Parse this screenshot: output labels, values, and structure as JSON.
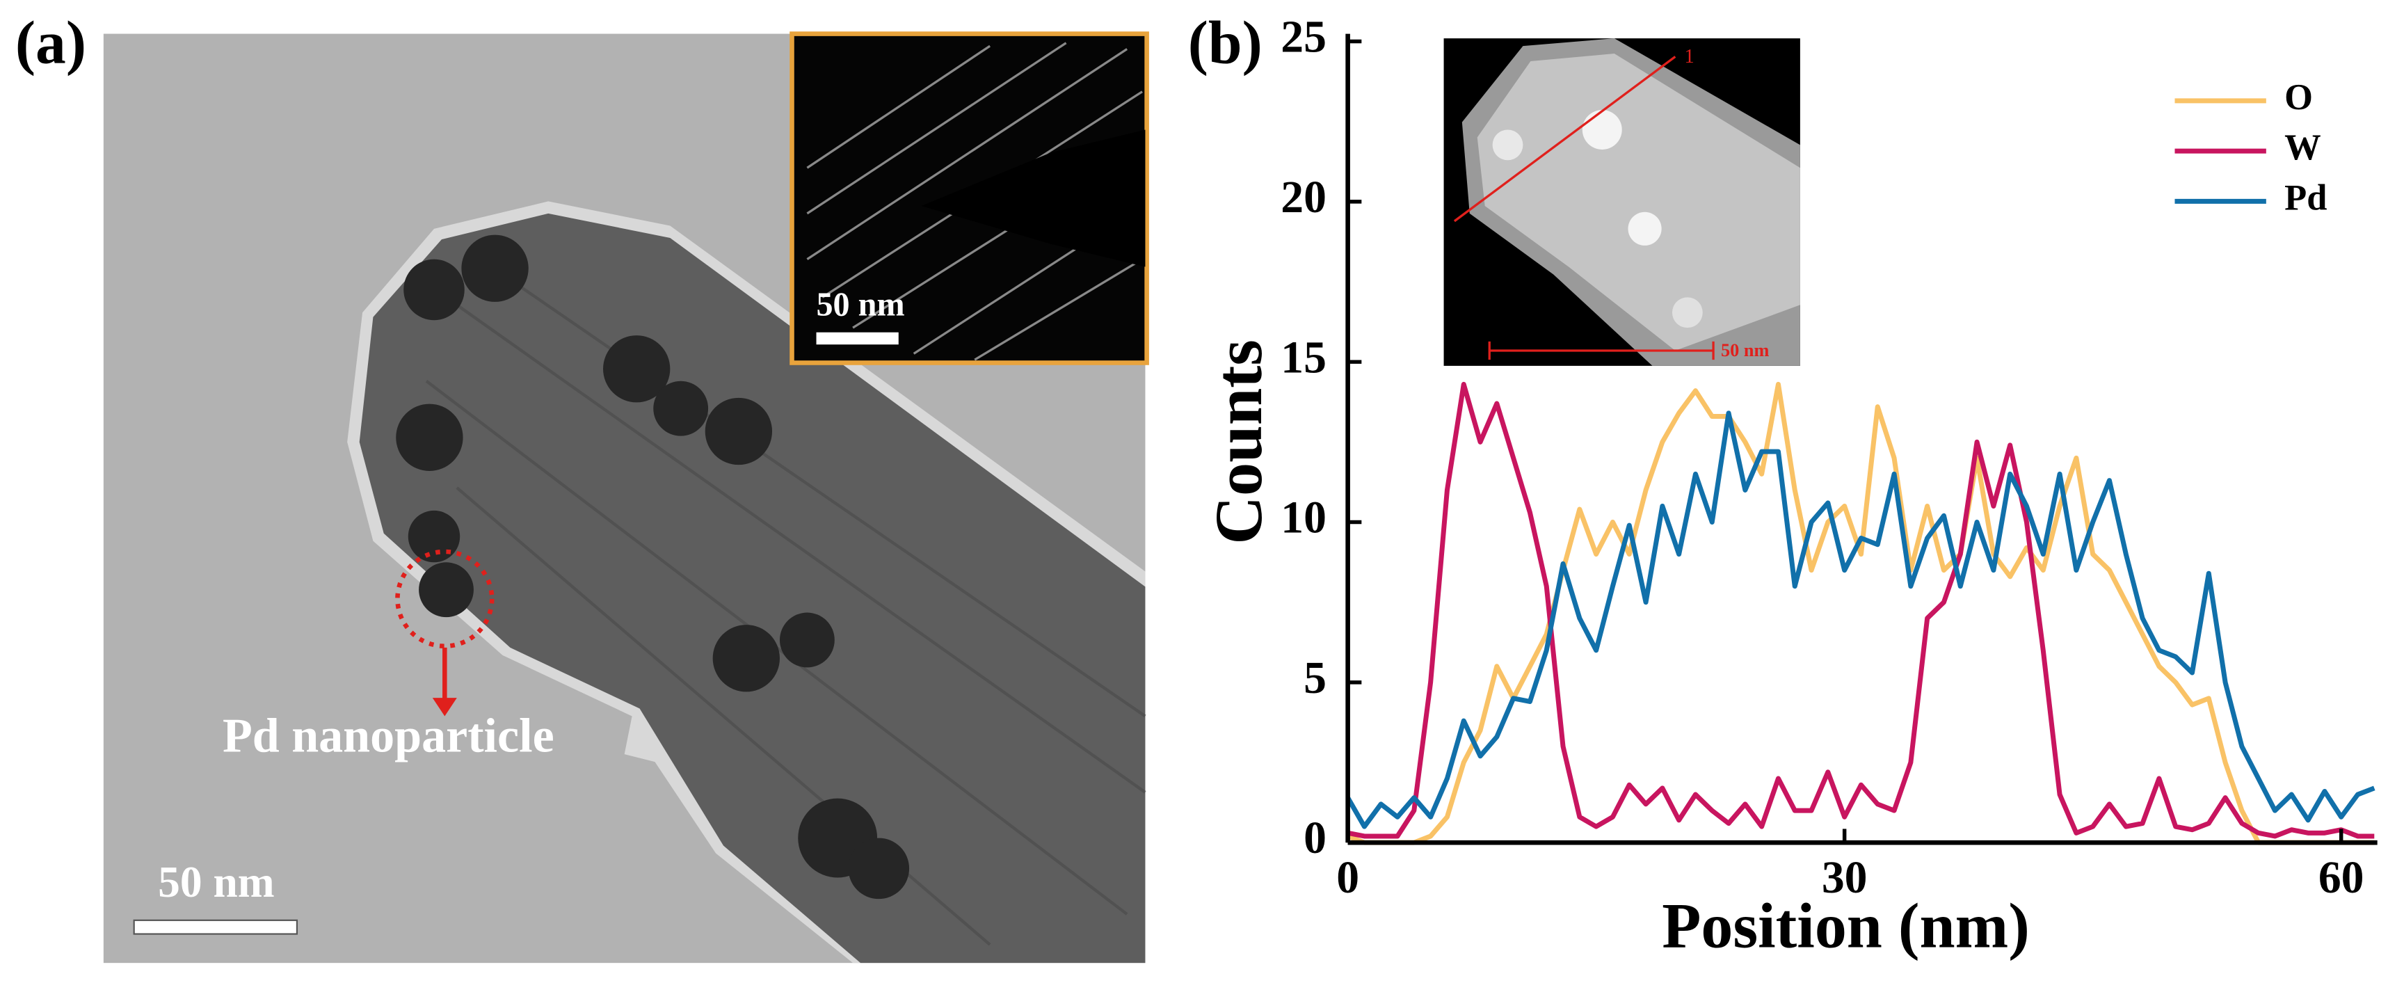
{
  "panel_a": {
    "label": "(a)",
    "inset_scale": "50 nm",
    "annotation": "Pd nanoparticle",
    "scale_bar": "50 nm"
  },
  "panel_b": {
    "label": "(b)",
    "inset_line_label": "1",
    "inset_scale": "50 nm"
  },
  "chart_data": {
    "type": "line",
    "xlabel": "Position (nm)",
    "ylabel": "Counts",
    "x": [
      0,
      1,
      2,
      3,
      4,
      5,
      6,
      7,
      8,
      9,
      10,
      11,
      12,
      13,
      14,
      15,
      16,
      17,
      18,
      19,
      20,
      21,
      22,
      23,
      24,
      25,
      26,
      27,
      28,
      29,
      30,
      31,
      32,
      33,
      34,
      35,
      36,
      37,
      38,
      39,
      40,
      41,
      42,
      43,
      44,
      45,
      46,
      47,
      48,
      49,
      50,
      51,
      52,
      53,
      54,
      55,
      56,
      57,
      58,
      59,
      60,
      61,
      62
    ],
    "series": [
      {
        "name": "O",
        "color": "#f9c266",
        "values": [
          0.2,
          0,
          0,
          0,
          0,
          0.2,
          0.8,
          2.5,
          3.5,
          5.5,
          4.5,
          5.5,
          6.5,
          8.5,
          10.4,
          9,
          10,
          9,
          11,
          12.5,
          13.4,
          14.1,
          13.3,
          13.3,
          12.5,
          11.5,
          14.3,
          11,
          8.5,
          10,
          10.5,
          9,
          13.6,
          12,
          8.5,
          10.5,
          8.5,
          9,
          12,
          9,
          8.3,
          9.2,
          8.5,
          10.5,
          12,
          9,
          8.5,
          7.5,
          6.5,
          5.5,
          5,
          4.3,
          4.5,
          2.5,
          1,
          0,
          0,
          0,
          0,
          0,
          0,
          0,
          0
        ]
      },
      {
        "name": "W",
        "color": "#c8155f",
        "values": [
          0.3,
          0.2,
          0.2,
          0.2,
          1,
          5,
          11,
          14.3,
          12.5,
          13.7,
          12,
          10.3,
          8,
          3,
          0.8,
          0.5,
          0.8,
          1.8,
          1.2,
          1.7,
          0.7,
          1.5,
          1,
          0.6,
          1.2,
          0.5,
          2,
          1,
          1,
          2.2,
          0.8,
          1.8,
          1.2,
          1,
          2.5,
          7,
          7.5,
          9,
          12.5,
          10.5,
          12.4,
          10,
          6,
          1.5,
          0.3,
          0.5,
          1.2,
          0.5,
          0.6,
          2,
          0.5,
          0.4,
          0.6,
          1.4,
          0.6,
          0.3,
          0.2,
          0.4,
          0.3,
          0.3,
          0.4,
          0.2,
          0.2
        ]
      },
      {
        "name": "Pd",
        "color": "#1170aa",
        "values": [
          1.4,
          0.5,
          1.2,
          0.8,
          1.4,
          0.8,
          2,
          3.8,
          2.7,
          3.3,
          4.5,
          4.4,
          6,
          8.7,
          7,
          6,
          8,
          9.9,
          7.5,
          10.5,
          9,
          11.5,
          10,
          13.4,
          11,
          12.2,
          12.2,
          8,
          10,
          10.6,
          8.5,
          9.5,
          9.3,
          11.5,
          8,
          9.5,
          10.2,
          8,
          10,
          8.5,
          11.5,
          10.5,
          9,
          11.5,
          8.5,
          10,
          11.3,
          9,
          7,
          6,
          5.8,
          5.3,
          8.4,
          5,
          3,
          2,
          1,
          1.5,
          0.7,
          1.6,
          0.8,
          1.5,
          1.7
        ]
      }
    ],
    "xlim": [
      0,
      62
    ],
    "ylim": [
      0,
      25
    ],
    "xticks": [
      0,
      30,
      60
    ],
    "yticks": [
      0,
      5,
      10,
      15,
      20,
      25
    ],
    "legend": "upper right"
  }
}
